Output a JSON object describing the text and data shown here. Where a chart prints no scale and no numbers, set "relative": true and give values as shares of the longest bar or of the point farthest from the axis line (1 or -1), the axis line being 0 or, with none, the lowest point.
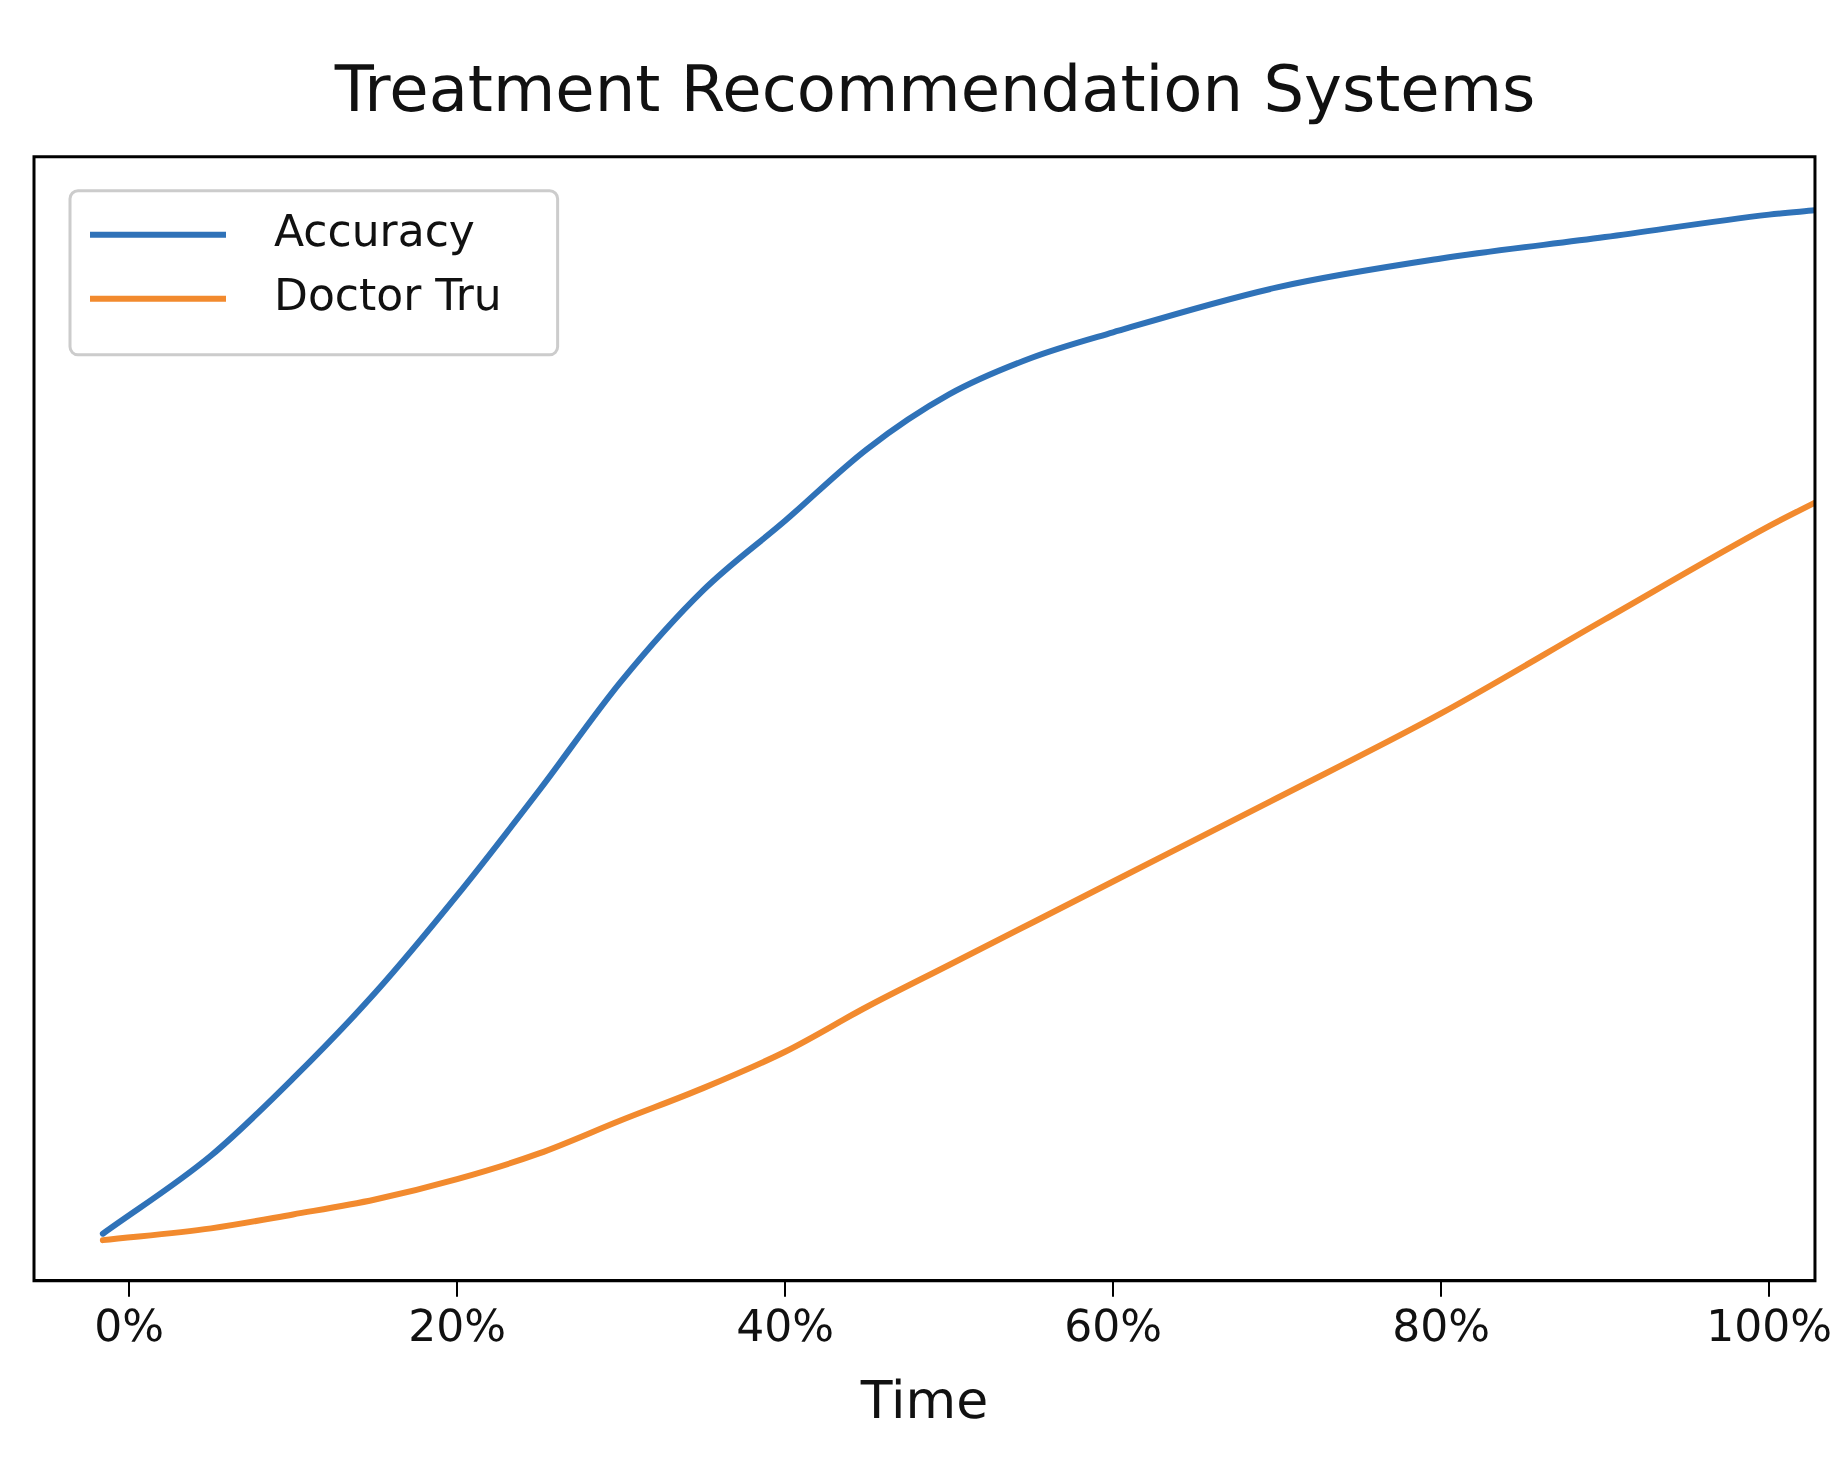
{
  "chart_data": {
    "type": "line",
    "title": "Treatment Recommendation Systems",
    "xlabel": "Time",
    "relative": true,
    "x": [
      -1.6,
      5,
      10,
      15,
      20,
      25,
      30,
      35,
      40,
      45,
      50,
      55,
      60,
      70,
      80,
      90,
      100,
      102.8
    ],
    "series": [
      {
        "name": "Accuracy",
        "color": "#2f72b8",
        "values": [
          0.044,
          0.117,
          0.189,
          0.269,
          0.36,
          0.458,
          0.56,
          0.645,
          0.71,
          0.777,
          0.828,
          0.862,
          0.886,
          0.928,
          0.955,
          0.975,
          0.996,
          1
        ]
      },
      {
        "name": "Doctor Tru",
        "color": "#f28a2e",
        "x": [
          -1.6,
          5,
          10,
          15,
          20,
          25,
          30,
          35,
          40,
          45,
          50,
          60,
          70,
          80,
          90,
          100,
          102.8
        ],
        "values": [
          0.038,
          0.049,
          0.062,
          0.076,
          0.095,
          0.119,
          0.15,
          0.18,
          0.214,
          0.256,
          0.295,
          0.373,
          0.451,
          0.53,
          0.618,
          0.705,
          0.727
        ]
      }
    ],
    "xlim": [
      -5.8,
      102.8
    ],
    "xticks": [
      {
        "value": 0,
        "label": "0%"
      },
      {
        "value": 20,
        "label": "20%"
      },
      {
        "value": 40,
        "label": "40%"
      },
      {
        "value": 60,
        "label": "60%"
      },
      {
        "value": 80,
        "label": "80%"
      },
      {
        "value": 100,
        "label": "100%"
      }
    ],
    "grid": false,
    "legend": "top left",
    "line_style": "solid",
    "marker": "none"
  }
}
